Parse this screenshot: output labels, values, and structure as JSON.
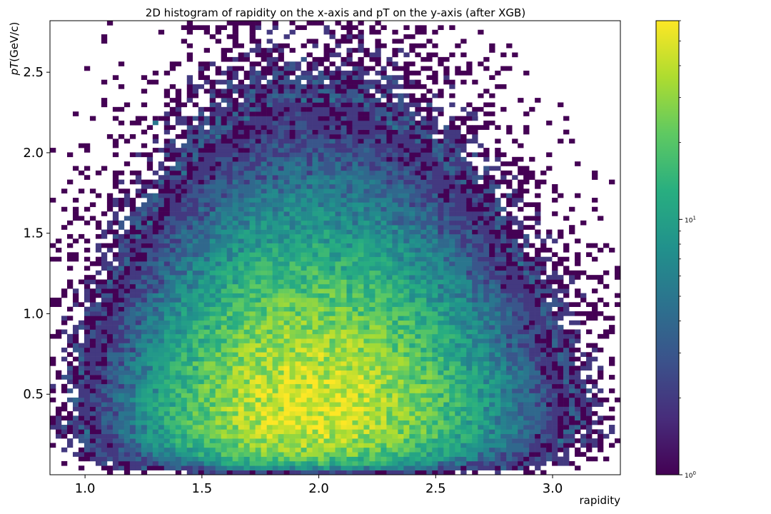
{
  "chart_data": {
    "type": "heatmap",
    "title": "2D histogram of rapidity on the x-axis and pT on the y-axis (after XGB)",
    "xlabel": "rapidity",
    "ylabel": {
      "italic": "pT",
      "rest": "(GeV/c)"
    },
    "xlim": [
      0.85,
      3.29
    ],
    "ylim": [
      0.0,
      2.82
    ],
    "xticks": [
      1.0,
      1.5,
      2.0,
      2.5,
      3.0
    ],
    "xtick_labels": [
      "1.0",
      "1.5",
      "2.0",
      "2.5",
      "3.0"
    ],
    "yticks": [
      0.5,
      1.0,
      1.5,
      2.0,
      2.5
    ],
    "ytick_labels": [
      "0.5",
      "1.0",
      "1.5",
      "2.0",
      "2.5"
    ],
    "colorscale": "viridis",
    "color_scale_type": "log",
    "colorbar": {
      "min": 1,
      "max": 60,
      "tick_labels": [
        {
          "value": 1,
          "base": "10",
          "exp": "0"
        },
        {
          "value": 10,
          "base": "10",
          "exp": "1"
        }
      ]
    },
    "bins": {
      "x_width": 0.0244,
      "y_width": 0.0282
    },
    "distribution": {
      "peak_rapidity": 1.95,
      "peak_pT": 0.42,
      "peak_counts": 50
    },
    "outlier_points": [
      {
        "x": 1.89,
        "y": 2.81,
        "count": 1
      },
      {
        "x": 1.85,
        "y": 2.53,
        "count": 1
      },
      {
        "x": 2.29,
        "y": 2.42,
        "count": 2
      },
      {
        "x": 2.02,
        "y": 2.36,
        "count": 1
      },
      {
        "x": 1.45,
        "y": 2.34,
        "count": 2
      },
      {
        "x": 1.7,
        "y": 2.34,
        "count": 2
      },
      {
        "x": 1.31,
        "y": 2.22,
        "count": 1
      },
      {
        "x": 2.67,
        "y": 2.25,
        "count": 2
      },
      {
        "x": 1.3,
        "y": 2.19,
        "count": 5
      },
      {
        "x": 1.56,
        "y": 2.13,
        "count": 3
      },
      {
        "x": 1.64,
        "y": 2.19,
        "count": 2
      },
      {
        "x": 1.79,
        "y": 2.12,
        "count": 1
      },
      {
        "x": 1.84,
        "y": 2.1,
        "count": 3
      },
      {
        "x": 2.55,
        "y": 2.03,
        "count": 2
      },
      {
        "x": 1.61,
        "y": 2.06,
        "count": 1
      }
    ]
  }
}
